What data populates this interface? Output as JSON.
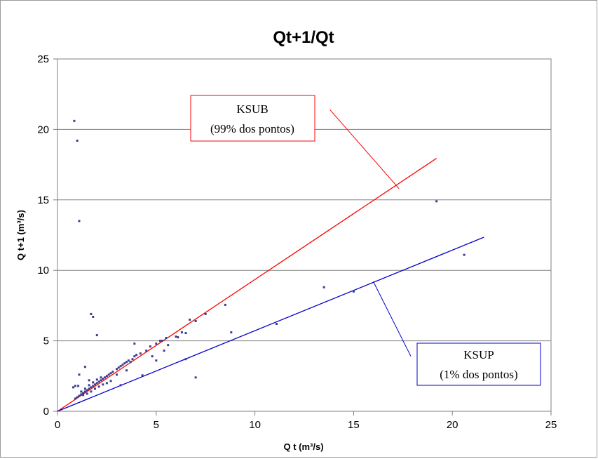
{
  "chart_data": {
    "type": "scatter",
    "title": "Qt+1/Qt",
    "xlabel": "Q t (m³/s)",
    "ylabel": "Q t+1 (m³/s)",
    "xlim": [
      0,
      25
    ],
    "ylim": [
      0,
      25
    ],
    "xticks": [
      "0",
      "5",
      "10",
      "15",
      "20",
      "25"
    ],
    "yticks": [
      "0",
      "5",
      "10",
      "15",
      "20",
      "25"
    ],
    "grid": "horizontal major gridlines",
    "series": [
      {
        "type": "scatter",
        "color": "#3b3f8f",
        "points": [
          [
            0.85,
            20.6
          ],
          [
            1.0,
            19.2
          ],
          [
            1.1,
            13.5
          ],
          [
            1.7,
            6.9
          ],
          [
            1.8,
            6.7
          ],
          [
            2.0,
            5.4
          ],
          [
            0.8,
            1.7
          ],
          [
            0.9,
            1.8
          ],
          [
            1.05,
            1.8
          ],
          [
            1.1,
            2.6
          ],
          [
            1.4,
            3.15
          ],
          [
            1.6,
            2.2
          ],
          [
            0.9,
            0.9
          ],
          [
            1.0,
            1.0
          ],
          [
            1.1,
            1.1
          ],
          [
            1.2,
            1.2
          ],
          [
            1.3,
            1.3
          ],
          [
            1.4,
            1.4
          ],
          [
            1.5,
            1.5
          ],
          [
            1.6,
            1.6
          ],
          [
            1.7,
            1.7
          ],
          [
            1.8,
            1.8
          ],
          [
            1.9,
            1.9
          ],
          [
            2.0,
            2.0
          ],
          [
            2.1,
            2.1
          ],
          [
            2.2,
            2.2
          ],
          [
            2.3,
            2.3
          ],
          [
            2.4,
            2.4
          ],
          [
            2.5,
            2.5
          ],
          [
            2.6,
            2.6
          ],
          [
            2.7,
            2.7
          ],
          [
            2.8,
            2.8
          ],
          [
            3.0,
            3.0
          ],
          [
            3.1,
            3.1
          ],
          [
            3.2,
            3.2
          ],
          [
            3.3,
            3.3
          ],
          [
            3.4,
            3.4
          ],
          [
            3.5,
            3.5
          ],
          [
            3.6,
            3.6
          ],
          [
            3.7,
            3.5
          ],
          [
            3.8,
            3.7
          ],
          [
            3.9,
            3.9
          ],
          [
            4.0,
            4.0
          ],
          [
            4.2,
            4.1
          ],
          [
            4.5,
            4.3
          ],
          [
            4.7,
            4.6
          ],
          [
            5.0,
            4.8
          ],
          [
            5.2,
            5.0
          ],
          [
            5.5,
            5.2
          ],
          [
            6.0,
            5.3
          ],
          [
            6.3,
            5.6
          ],
          [
            1.3,
            1.15
          ],
          [
            1.5,
            1.25
          ],
          [
            1.7,
            1.4
          ],
          [
            1.9,
            1.6
          ],
          [
            2.1,
            1.75
          ],
          [
            2.3,
            1.9
          ],
          [
            1.2,
            1.4
          ],
          [
            1.4,
            1.6
          ],
          [
            1.6,
            1.85
          ],
          [
            1.8,
            2.05
          ],
          [
            2.0,
            2.25
          ],
          [
            2.2,
            2.4
          ],
          [
            2.5,
            2.0
          ],
          [
            2.7,
            2.15
          ],
          [
            3.0,
            2.6
          ],
          [
            3.2,
            1.85
          ],
          [
            3.5,
            2.9
          ],
          [
            3.9,
            4.8
          ],
          [
            4.3,
            2.55
          ],
          [
            4.8,
            3.9
          ],
          [
            5.0,
            3.6
          ],
          [
            5.4,
            4.3
          ],
          [
            5.3,
            5.0
          ],
          [
            5.6,
            4.7
          ],
          [
            6.1,
            5.25
          ],
          [
            6.5,
            5.55
          ],
          [
            6.7,
            6.5
          ],
          [
            6.5,
            3.7
          ],
          [
            7.0,
            2.4
          ],
          [
            7.5,
            6.9
          ],
          [
            7.0,
            6.4
          ],
          [
            8.5,
            7.55
          ],
          [
            8.8,
            5.6
          ],
          [
            11.1,
            6.2
          ],
          [
            13.5,
            8.8
          ],
          [
            15.0,
            8.5
          ],
          [
            19.2,
            14.9
          ],
          [
            20.6,
            11.1
          ]
        ]
      }
    ],
    "lines": [
      {
        "name": "KSUB",
        "color": "#ff0000",
        "x": [
          0,
          19.2
        ],
        "y": [
          0,
          17.95
        ]
      },
      {
        "name": "KSUP",
        "color": "#0000cc",
        "x": [
          0,
          21.6
        ],
        "y": [
          0,
          12.35
        ]
      }
    ],
    "annotations": [
      {
        "id": "ksub",
        "lines": [
          "KSUB",
          "(99% dos pontos)"
        ],
        "border_color": "#ff0000",
        "pointer_target": [
          17.3,
          15.8
        ],
        "pointer_source": [
          13.8,
          21.4
        ]
      },
      {
        "id": "ksup",
        "lines": [
          "KSUP",
          "(1% dos pontos)"
        ],
        "border_color": "#0000cc",
        "pointer_target": [
          16.0,
          9.2
        ],
        "pointer_source": [
          17.9,
          3.9
        ]
      }
    ]
  }
}
